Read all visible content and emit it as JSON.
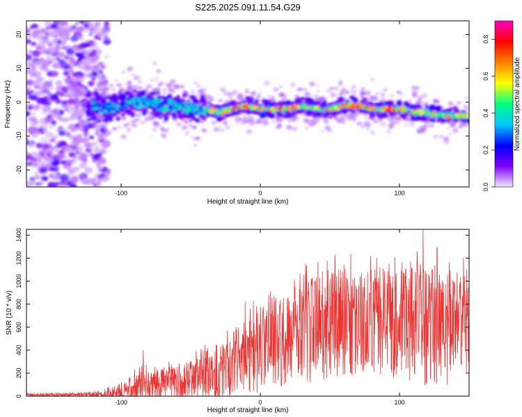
{
  "title": "S225.2025.091.11.54.G29",
  "chart_data": [
    {
      "type": "heatmap",
      "title": "S225.2025.091.11.54.G29",
      "xlabel": "Height of straight line (km)",
      "ylabel": "Frequency (Hz)",
      "xlim": [
        -168,
        150
      ],
      "ylim": [
        -25,
        24
      ],
      "x_ticks": [
        -100,
        0,
        100
      ],
      "x_tick_labels": [
        "-100",
        "0",
        "100"
      ],
      "y_ticks": [
        -20,
        -10,
        0,
        10,
        20
      ],
      "y_tick_labels": [
        "-20",
        "-10",
        "0",
        "10",
        "20"
      ],
      "colorbar": {
        "label": "Normalized spectral amplitude",
        "range": [
          0,
          0.9
        ],
        "ticks": [
          0.0,
          0.2,
          0.4,
          0.6,
          0.8
        ],
        "tick_labels": [
          "0.0",
          "0.2",
          "0.4",
          "0.6",
          "0.8"
        ],
        "colormap": [
          "#f2e6ff",
          "#7f00ff",
          "#0000ff",
          "#00c8ff",
          "#00ff80",
          "#ffff00",
          "#ff8000",
          "#ff0000",
          "#ff00c0"
        ]
      },
      "ridge": {
        "x": [
          -168,
          -150,
          -125,
          -110,
          -100,
          -90,
          -80,
          -70,
          -60,
          -50,
          -40,
          -30,
          -20,
          -10,
          0,
          10,
          20,
          30,
          40,
          50,
          60,
          70,
          80,
          90,
          100,
          110,
          120,
          130,
          140,
          150
        ],
        "y": [
          0,
          0,
          -1,
          -2,
          -1,
          0,
          0,
          -1,
          -1,
          -2,
          -2,
          -3,
          -2,
          -1,
          -2,
          -2,
          -2,
          -1,
          -2,
          -2,
          -1,
          -1,
          -2,
          -2,
          -2,
          -3,
          -3,
          -4,
          -4,
          -4
        ]
      },
      "grid": false
    },
    {
      "type": "line",
      "xlabel": "Height of straight line (km)",
      "ylabel": "SNR (10 * v/v)",
      "xlim": [
        -168,
        150
      ],
      "ylim": [
        0,
        1450
      ],
      "x_ticks": [
        -100,
        0,
        100
      ],
      "x_tick_labels": [
        "-100",
        "0",
        "100"
      ],
      "y_ticks": [
        0,
        200,
        400,
        600,
        800,
        1000,
        1200,
        1400
      ],
      "y_tick_labels": [
        "0",
        "200",
        "400",
        "600",
        "800",
        "1000",
        "1200",
        "1400"
      ],
      "line_color": "#ee3333",
      "envelope": {
        "x": [
          -168,
          -140,
          -120,
          -110,
          -100,
          -90,
          -80,
          -70,
          -60,
          -50,
          -40,
          -30,
          -20,
          -10,
          0,
          10,
          20,
          30,
          40,
          50,
          60,
          70,
          80,
          90,
          100,
          110,
          120,
          130,
          140,
          150
        ],
        "base": [
          8,
          8,
          10,
          15,
          30,
          60,
          90,
          110,
          120,
          140,
          180,
          230,
          280,
          350,
          400,
          460,
          520,
          560,
          600,
          620,
          640,
          650,
          660,
          640,
          650,
          640,
          600,
          600,
          580,
          620
        ],
        "amp": [
          20,
          20,
          30,
          50,
          80,
          140,
          150,
          140,
          150,
          170,
          220,
          250,
          280,
          320,
          380,
          400,
          420,
          450,
          480,
          480,
          470,
          460,
          450,
          480,
          500,
          520,
          520,
          500,
          480,
          420
        ]
      },
      "spikes": [
        {
          "x": -84,
          "y": 400
        },
        {
          "x": -11,
          "y": 820
        },
        {
          "x": 33,
          "y": 990
        },
        {
          "x": 48,
          "y": 1180
        },
        {
          "x": 65,
          "y": 1240
        },
        {
          "x": 108,
          "y": 1170
        },
        {
          "x": 117,
          "y": 1450
        },
        {
          "x": 127,
          "y": 1290
        },
        {
          "x": 146,
          "y": 1200
        }
      ],
      "grid": false
    }
  ]
}
